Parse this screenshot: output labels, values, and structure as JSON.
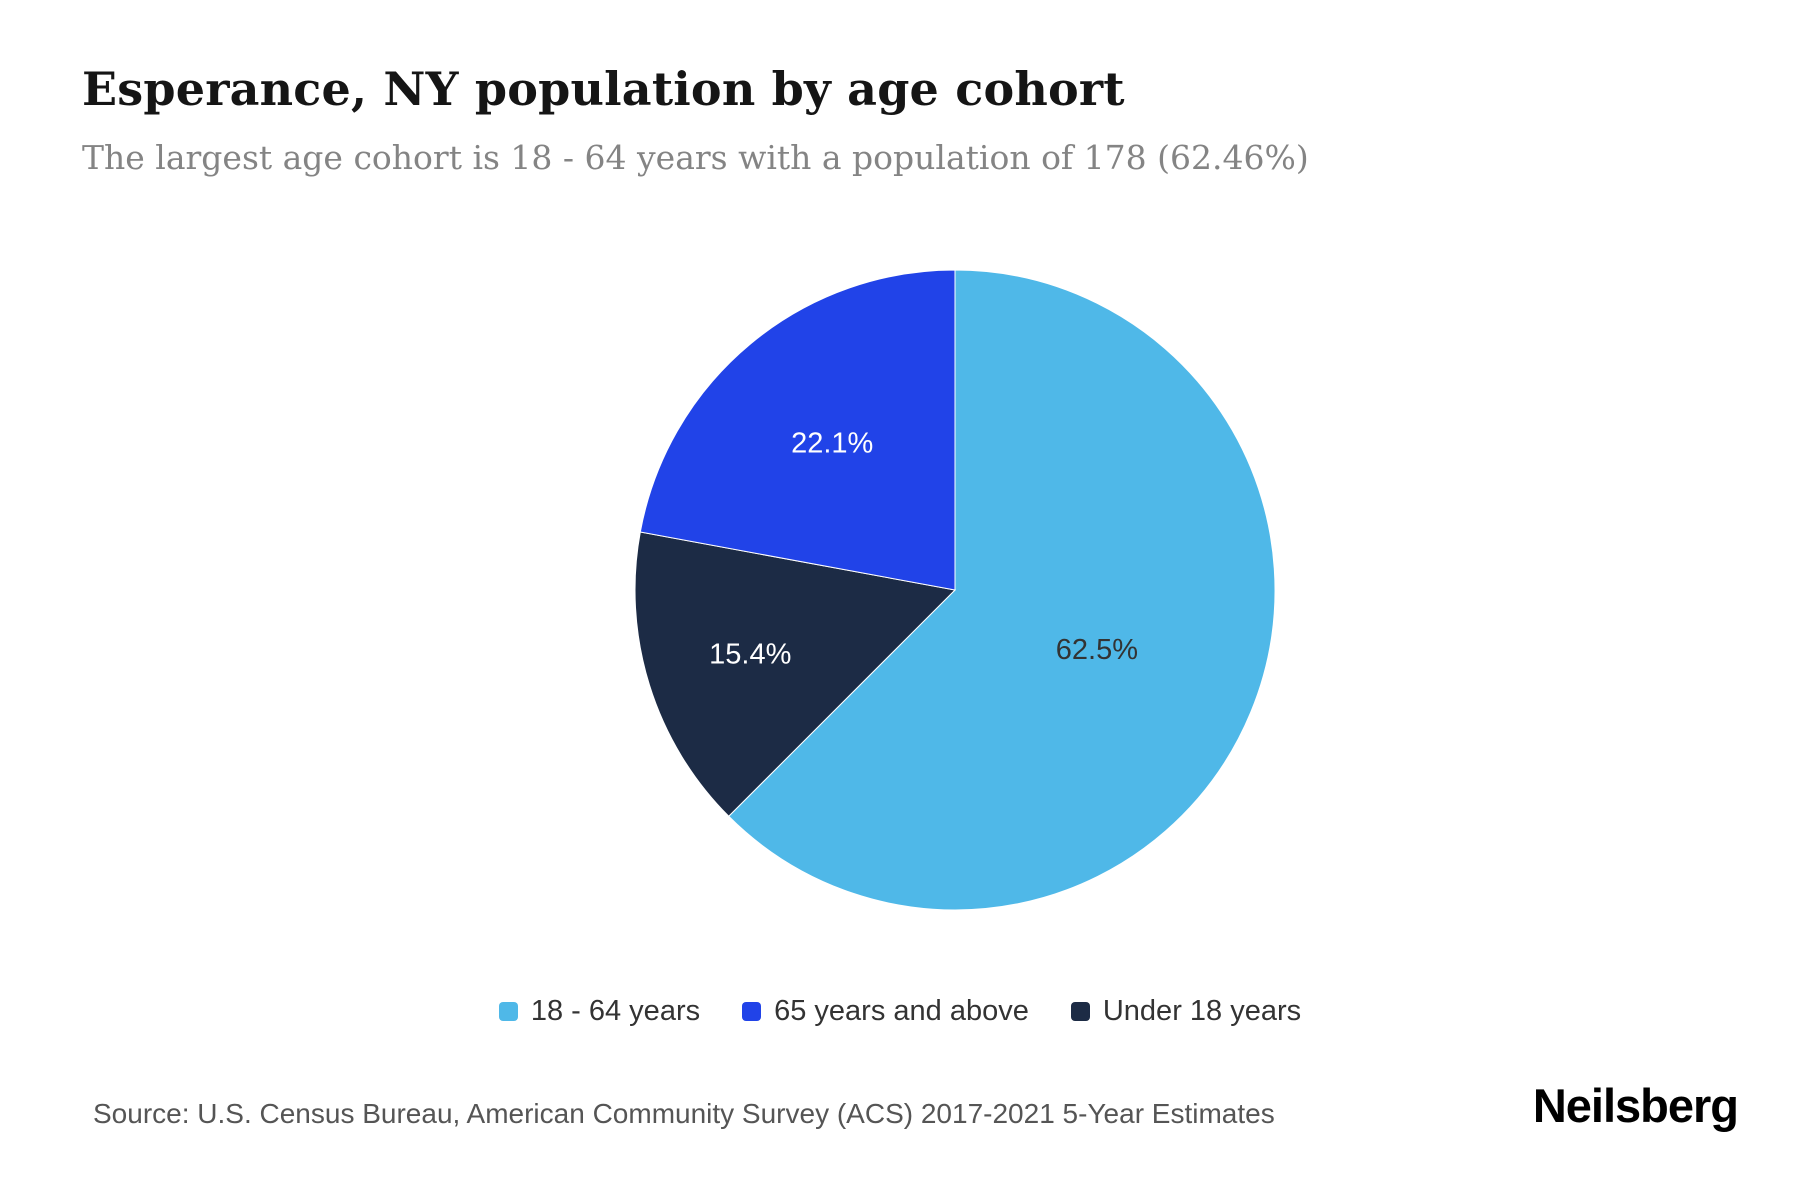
{
  "header": {
    "title": "Esperance, NY population by age cohort",
    "subtitle": "The largest age cohort is 18 - 64 years with a population of 178 (62.46%)"
  },
  "chart_data": {
    "type": "pie",
    "title": "Esperance, NY population by age cohort",
    "slices": [
      {
        "label": "18 - 64 years",
        "value": 62.5,
        "value_label": "62.5%",
        "color": "#4FB8E8",
        "text_color": "#333333"
      },
      {
        "label": "65 years and above",
        "value": 22.1,
        "value_label": "22.1%",
        "color": "#2143E8",
        "text_color": "#ffffff"
      },
      {
        "label": "Under 18 years",
        "value": 15.4,
        "value_label": "15.4%",
        "color": "#1C2B45",
        "text_color": "#ffffff"
      }
    ],
    "start_angle_deg": 0,
    "direction": "clockwise",
    "draw_order": [
      0,
      2,
      1
    ],
    "legend_position": "bottom",
    "grid": false
  },
  "footer": {
    "source": "Source: U.S. Census Bureau, American Community Survey (ACS) 2017-2021 5-Year Estimates",
    "brand": "Neilsberg"
  }
}
